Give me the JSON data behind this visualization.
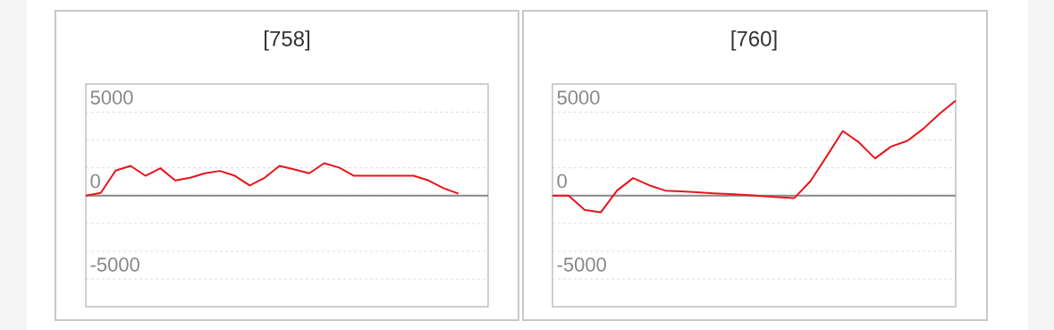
{
  "chart_data": [
    {
      "type": "line",
      "title": "[758]",
      "categories": [
        null,
        null,
        null,
        null,
        null,
        null,
        null,
        null,
        null,
        null,
        null,
        null,
        null,
        null,
        null,
        null,
        null,
        null,
        null,
        null,
        null,
        null,
        null,
        null,
        null,
        null,
        null,
        null
      ],
      "series": [
        {
          "color": "#e8141c",
          "values": [
            0,
            160,
            1500,
            1780,
            1190,
            1640,
            910,
            1070,
            1340,
            1480,
            1190,
            610,
            1070,
            1780,
            1570,
            1340,
            1940,
            1680,
            1190,
            1190,
            1190,
            1190,
            1190,
            910,
            450,
            120,
            null,
            null
          ]
        }
      ],
      "ylim": [
        -6650,
        6680
      ],
      "yticks": [
        -5000,
        {
          "value": -3333,
          "label": null
        },
        {
          "value": -1667,
          "label": null
        },
        0,
        {
          "value": 1667,
          "label": null
        },
        {
          "value": 3333,
          "label": null
        },
        5000
      ],
      "grid": "y",
      "marker": "none",
      "line_style": "solid",
      "ref_lines": [
        {
          "axis": "y",
          "value": 0,
          "color": "#888888"
        }
      ]
    },
    {
      "type": "line",
      "title": "[760]",
      "categories": [
        null,
        null,
        null,
        null,
        null,
        null,
        null,
        null,
        null,
        null,
        null,
        null,
        null,
        null,
        null,
        null,
        null,
        null,
        null,
        null,
        null,
        null,
        null,
        null,
        null,
        null
      ],
      "series": [
        {
          "color": "#e8141c",
          "values": [
            0,
            0,
            -860,
            -1000,
            300,
            1050,
            620,
            300,
            250,
            200,
            140,
            90,
            40,
            -20,
            -90,
            -140,
            870,
            2350,
            3870,
            3190,
            2230,
            2940,
            3280,
            4010,
            4900,
            5690
          ]
        }
      ],
      "ylim": [
        -6650,
        6680
      ],
      "yticks": [
        -5000,
        {
          "value": -3333,
          "label": null
        },
        {
          "value": -1667,
          "label": null
        },
        0,
        {
          "value": 1667,
          "label": null
        },
        {
          "value": 3333,
          "label": null
        },
        5000
      ],
      "grid": "y",
      "marker": "none",
      "line_style": "solid",
      "ref_lines": [
        {
          "axis": "y",
          "value": 0,
          "color": "#888888"
        }
      ]
    }
  ]
}
